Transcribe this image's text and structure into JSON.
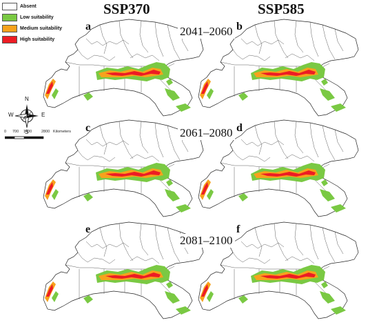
{
  "legend": {
    "items": [
      {
        "label": "Absent",
        "color": "#ffffff"
      },
      {
        "label": "Low suitability",
        "color": "#7ac943"
      },
      {
        "label": "Medium suitability",
        "color": "#f7a21c"
      },
      {
        "label": "High suitability",
        "color": "#ed1c24"
      }
    ]
  },
  "columns": [
    "SSP370",
    "SSP585"
  ],
  "periods": [
    "2041–2060",
    "2061–2080",
    "2081–2100"
  ],
  "panels": [
    {
      "letter": "a"
    },
    {
      "letter": "b"
    },
    {
      "letter": "c"
    },
    {
      "letter": "d"
    },
    {
      "letter": "e"
    },
    {
      "letter": "f"
    }
  ],
  "compass": {
    "n": "N",
    "s": "S",
    "e": "E",
    "w": "W"
  },
  "scalebar": {
    "ticks": [
      "0",
      "700",
      "1400",
      "2800"
    ],
    "unit": "Kilometers"
  }
}
